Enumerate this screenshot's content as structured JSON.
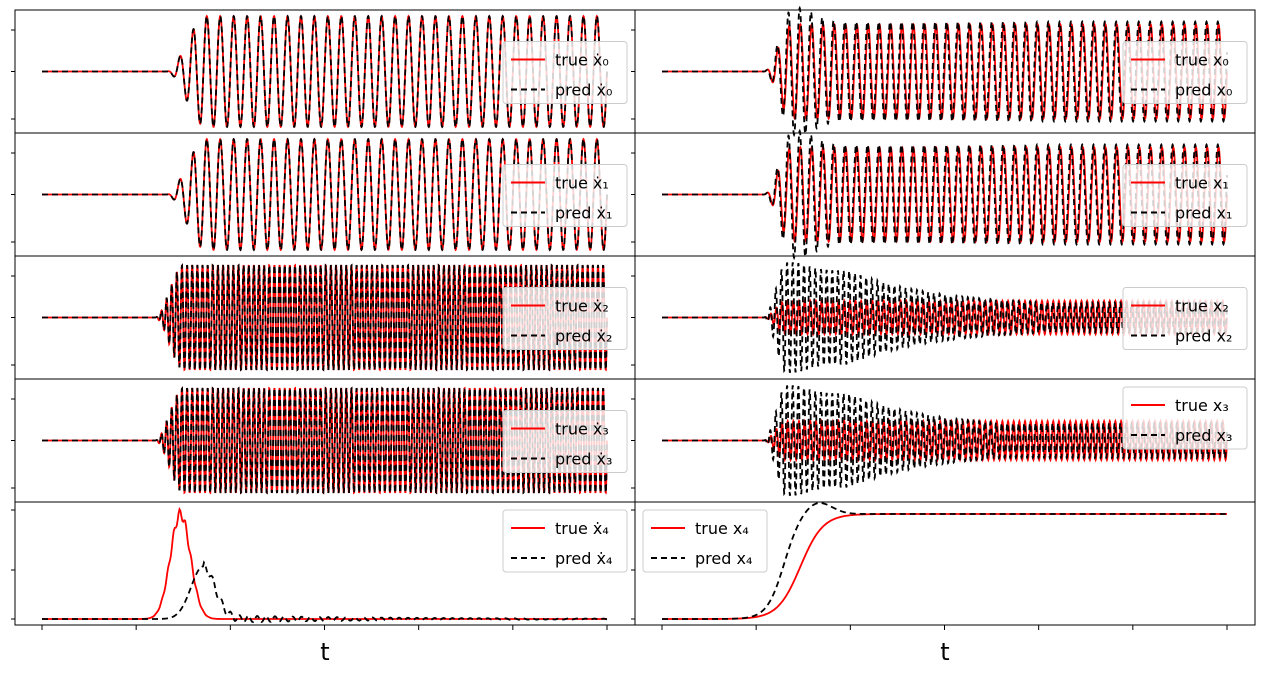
{
  "figure": {
    "xlabel_left": "t",
    "xlabel_right": "t"
  },
  "colors": {
    "true": "#ff0000",
    "pred": "#000000"
  },
  "chart_data": [
    {
      "type": "line",
      "panel": "dx0",
      "legend_loc": "right",
      "legend": [
        {
          "label": "true ẋ₀",
          "style": "solid"
        },
        {
          "label": "pred ẋ₀",
          "style": "dashed"
        }
      ],
      "signal": {
        "onset": 0.22,
        "ramp": 0.07,
        "freq": 42,
        "amp_true": 1.0,
        "amp_pred": 1.0,
        "decay": false
      }
    },
    {
      "type": "line",
      "panel": "x0",
      "legend_loc": "right",
      "legend": [
        {
          "label": "true x₀",
          "style": "solid"
        },
        {
          "label": "pred x₀",
          "style": "dashed"
        }
      ],
      "signal": {
        "onset": 0.18,
        "ramp": 0.05,
        "freq": 50,
        "amp_true": 0.85,
        "amp_pred": 0.9,
        "burst": 1.15,
        "decay": false
      }
    },
    {
      "type": "line",
      "panel": "dx1",
      "legend_loc": "right",
      "legend": [
        {
          "label": "true ẋ₁",
          "style": "solid"
        },
        {
          "label": "pred ẋ₁",
          "style": "dashed"
        }
      ],
      "signal": {
        "onset": 0.22,
        "ramp": 0.07,
        "freq": 42,
        "amp_true": 1.0,
        "amp_pred": 1.0,
        "decay": false
      }
    },
    {
      "type": "line",
      "panel": "x1",
      "legend_loc": "right",
      "legend": [
        {
          "label": "true x₁",
          "style": "solid"
        },
        {
          "label": "pred x₁",
          "style": "dashed"
        }
      ],
      "signal": {
        "onset": 0.18,
        "ramp": 0.05,
        "freq": 50,
        "amp_true": 0.85,
        "amp_pred": 0.9,
        "burst": 1.15,
        "decay": false
      }
    },
    {
      "type": "line",
      "panel": "dx2",
      "legend_loc": "right",
      "legend": [
        {
          "label": "true ẋ₂",
          "style": "solid"
        },
        {
          "label": "pred ẋ₂",
          "style": "dashed"
        }
      ],
      "signal": {
        "onset": 0.2,
        "ramp": 0.05,
        "freq": 110,
        "amp_true": 0.95,
        "amp_pred": 0.95,
        "decay": false
      }
    },
    {
      "type": "line",
      "panel": "x2",
      "legend_loc": "right",
      "legend": [
        {
          "label": "true x₂",
          "style": "solid"
        },
        {
          "label": "pred x₂",
          "style": "dashed"
        }
      ],
      "signal": {
        "onset": 0.18,
        "ramp": 0.04,
        "freq": 100,
        "amp_true": 0.3,
        "amp_pred": 0.85,
        "burst": 1.0,
        "decay": true
      }
    },
    {
      "type": "line",
      "panel": "dx3",
      "legend_loc": "right",
      "legend": [
        {
          "label": "true ẋ₃",
          "style": "solid"
        },
        {
          "label": "pred ẋ₃",
          "style": "dashed"
        }
      ],
      "signal": {
        "onset": 0.2,
        "ramp": 0.05,
        "freq": 110,
        "amp_true": 0.95,
        "amp_pred": 0.95,
        "decay": false
      }
    },
    {
      "type": "line",
      "panel": "x3",
      "legend_loc": "upper right",
      "legend": [
        {
          "label": "true x₃",
          "style": "solid"
        },
        {
          "label": "pred x₃",
          "style": "dashed"
        }
      ],
      "signal": {
        "onset": 0.18,
        "ramp": 0.04,
        "freq": 100,
        "amp_true": 0.35,
        "amp_pred": 0.85,
        "burst": 1.0,
        "decay": true
      }
    },
    {
      "type": "line",
      "panel": "dx4",
      "legend_loc": "upper right",
      "legend": [
        {
          "label": "true ẋ₄",
          "style": "solid"
        },
        {
          "label": "pred ẋ₄",
          "style": "dashed"
        }
      ],
      "pulse": {
        "true_center": 0.245,
        "true_width": 0.025,
        "true_height": 1.0,
        "pred_center": 0.285,
        "pred_width": 0.03,
        "pred_height": 0.5
      }
    },
    {
      "type": "line",
      "panel": "x4",
      "legend_loc": "upper left",
      "legend": [
        {
          "label": "true x₄",
          "style": "solid"
        },
        {
          "label": "pred x₄",
          "style": "dashed"
        }
      ],
      "sigmoid": {
        "true_center": 0.245,
        "true_scale": 0.02,
        "pred_center": 0.215,
        "pred_scale": 0.015,
        "overshoot": 0.12
      }
    }
  ]
}
